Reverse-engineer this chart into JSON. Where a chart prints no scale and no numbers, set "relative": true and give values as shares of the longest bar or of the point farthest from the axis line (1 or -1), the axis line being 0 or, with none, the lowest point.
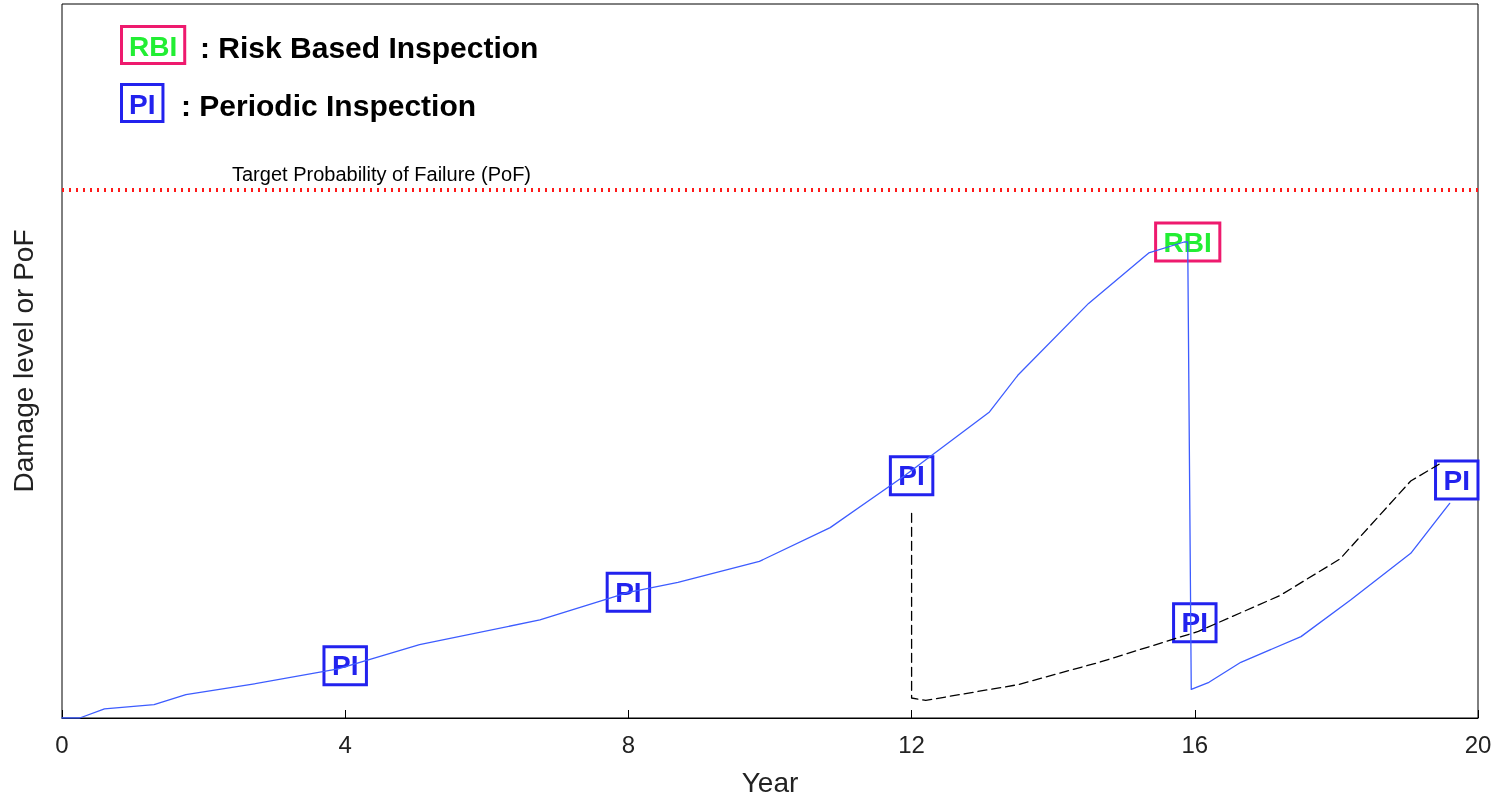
{
  "chart_data": {
    "type": "line",
    "relative": true,
    "xlabel": "Year",
    "ylabel": "Damage level or PoF",
    "xlim": [
      0,
      20
    ],
    "xticks": [
      0,
      4,
      8,
      12,
      16,
      20
    ],
    "grid": false,
    "marker": "none",
    "series": [
      {
        "color": "#3d5cff",
        "line_style": "solid",
        "x": [
          0,
          0.25,
          0.6,
          1.3,
          1.75,
          2.65,
          3.9,
          5.05,
          6.75,
          8,
          8.7,
          9.85,
          10.85,
          11.9,
          13.1,
          13.5,
          14.5,
          15.35,
          15.85,
          15.9,
          15.95,
          16.2,
          16.65,
          17.5,
          18.2,
          19.05,
          19.6
        ],
        "values": [
          0,
          0,
          0.019,
          0.028,
          0.049,
          0.07,
          0.103,
          0.154,
          0.206,
          0.264,
          0.285,
          0.329,
          0.4,
          0.509,
          0.643,
          0.72,
          0.871,
          0.977,
          1,
          1,
          0.06,
          0.075,
          0.117,
          0.171,
          0.248,
          0.346,
          0.451
        ]
      },
      {
        "color": "#000000",
        "line_style": "dashed",
        "x": [
          12,
          12,
          12.2,
          13.5,
          14.65,
          16.05,
          17.2,
          18.05,
          19.05,
          19.45
        ],
        "values": [
          0.43,
          0.042,
          0.037,
          0.07,
          0.117,
          0.182,
          0.257,
          0.334,
          0.498,
          0.533
        ]
      }
    ],
    "ref_lines": [
      {
        "axis": "y",
        "value": 1.11,
        "label": "Target Probability of Failure (PoF)",
        "color": "#ff1a1a",
        "line_style": "dotted"
      }
    ],
    "annotations": [
      "RBI : Risk Based Inspection",
      "PI : Periodic Inspection",
      {
        "text": "PI",
        "x": 4,
        "y": 0.11
      },
      {
        "text": "PI",
        "x": 8,
        "y": 0.264
      },
      {
        "text": "PI",
        "x": 12,
        "y": 0.509
      },
      {
        "text": "RBI",
        "x": 15.9,
        "y": 1
      },
      {
        "text": "PI",
        "x": 16,
        "y": 0.2
      },
      {
        "text": "PI",
        "x": 19.7,
        "y": 0.5
      }
    ]
  }
}
